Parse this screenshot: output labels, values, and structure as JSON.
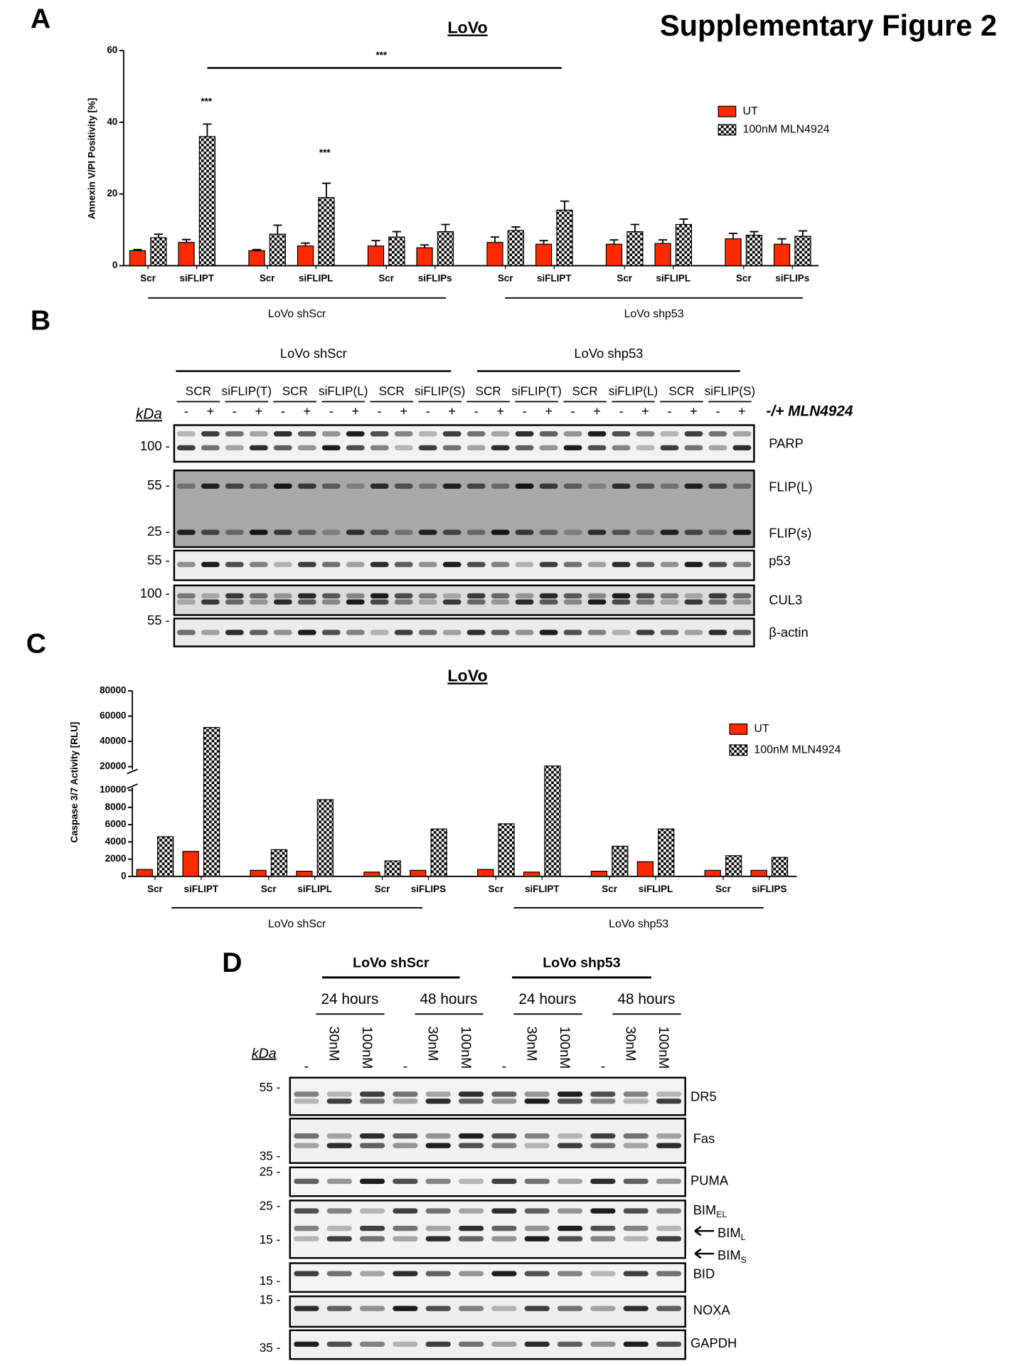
{
  "figure_title": "Supplementary Figure 2",
  "panel_labels": [
    "A",
    "B",
    "C",
    "D"
  ],
  "chart_data": [
    {
      "type": "bar",
      "title": "LoVo",
      "y_label": "Annexin V/PI Positivity [%]",
      "categories": [
        "Scr",
        "siFLIPT",
        "Scr",
        "siFLIPL",
        "Scr",
        "siFLIPs",
        "Scr",
        "siFLIPT",
        "Scr",
        "siFLIPL",
        "Scr",
        "siFLIPs"
      ],
      "groups": [
        "LoVo shScr",
        "LoVo shp53"
      ],
      "series": [
        {
          "name": "UT",
          "color": "#ff2a00",
          "values": [
            4.2,
            6.5,
            4.2,
            5.5,
            5.5,
            5,
            6.5,
            6,
            6,
            6.2,
            7.5,
            6
          ],
          "errors": [
            0.3,
            0.8,
            0.3,
            0.8,
            1.5,
            0.8,
            1.5,
            1,
            1.2,
            1,
            1.5,
            1.5
          ]
        },
        {
          "name": "100nM MLN4924",
          "color": "#000000",
          "pattern": "checker",
          "values": [
            7.8,
            36,
            8.8,
            19,
            8,
            9.5,
            9.8,
            15.5,
            9.5,
            11.5,
            8.5,
            8.2
          ],
          "errors": [
            1,
            3.5,
            2.5,
            4,
            1.5,
            2,
            1,
            2.5,
            2,
            1.5,
            1,
            1.5
          ]
        }
      ],
      "ylim": [
        0,
        60
      ],
      "yticks": [
        0,
        20,
        40,
        60
      ],
      "annotations": [
        "***",
        "***",
        "***"
      ]
    },
    {
      "type": "bar",
      "title": "LoVo",
      "y_label": "Caspase 3/7 Activity [RLU]",
      "categories": [
        "Scr",
        "siFLIPT",
        "Scr",
        "siFLIPL",
        "Scr",
        "siFLIPS",
        "Scr",
        "siFLIPT",
        "Scr",
        "siFLIPL",
        "Scr",
        "siFLIPS"
      ],
      "groups": [
        "LoVo shScr",
        "LoVo shp53"
      ],
      "series": [
        {
          "name": "UT",
          "color": "#ff2a00",
          "values": [
            800,
            2900,
            700,
            600,
            500,
            700,
            800,
            500,
            600,
            1700,
            700,
            700
          ]
        },
        {
          "name": "100nM MLN4924",
          "color": "#000000",
          "pattern": "checker",
          "values": [
            4600,
            51000,
            3100,
            8900,
            1800,
            5500,
            6100,
            20500,
            3500,
            5500,
            2400,
            2200
          ]
        }
      ],
      "ylim": [
        0,
        80000
      ],
      "y_break": [
        10000,
        20000
      ],
      "yticks": [
        0,
        2000,
        4000,
        6000,
        8000,
        10000,
        20000,
        40000,
        60000,
        80000
      ]
    }
  ],
  "blot_b": {
    "groups": [
      "LoVo shScr",
      "LoVo shp53"
    ],
    "lane_groups": [
      "SCR",
      "siFLIP(T)",
      "SCR",
      "siFLIP(L)",
      "SCR",
      "siFLIP(S)",
      "SCR",
      "siFLIP(T)",
      "SCR",
      "siFLIP(L)",
      "SCR",
      "siFLIP(S)"
    ],
    "lane_signs": [
      "-",
      "+",
      "-",
      "+",
      "-",
      "+",
      "-",
      "+",
      "-",
      "+",
      "-",
      "+",
      "-",
      "+",
      "-",
      "+",
      "-",
      "+",
      "-",
      "+",
      "-",
      "+",
      "-",
      "+"
    ],
    "treatment_label": "-/+ MLN4924",
    "kda_label": "kDa",
    "rows": [
      {
        "labels": [
          "PARP"
        ],
        "markers": [
          "100 -"
        ]
      },
      {
        "labels": [
          "FLIP(L)",
          "FLIP(s)"
        ],
        "markers": [
          "55 -",
          "25 -"
        ]
      },
      {
        "labels": [
          "p53"
        ],
        "markers": [
          "55 -"
        ]
      },
      {
        "labels": [
          "CUL3"
        ],
        "markers": [
          "100 -"
        ]
      },
      {
        "labels": [
          "β-actin"
        ],
        "markers": [
          "55 -"
        ]
      }
    ]
  },
  "blot_d": {
    "groups": [
      "LoVo shScr",
      "LoVo shp53"
    ],
    "times": [
      "24 hours",
      "48 hours",
      "24 hours",
      "48 hours"
    ],
    "lanes": [
      "-",
      "30nM",
      "100nM",
      "-",
      "30nM",
      "100nM",
      "-",
      "30nM",
      "100nM",
      "-",
      "30nM",
      "100nM"
    ],
    "kda_label": "kDa",
    "rows": [
      {
        "labels": [
          "DR5"
        ],
        "markers": [
          "55 -"
        ]
      },
      {
        "labels": [
          "Fas"
        ],
        "markers": [
          "35 -"
        ]
      },
      {
        "labels": [
          "PUMA"
        ],
        "markers": [
          "25 -"
        ]
      },
      {
        "labels": [
          {
            "text": "BIM",
            "sub": "EL"
          },
          {
            "text": "BIM",
            "sub": "L"
          },
          {
            "text": "BIM",
            "sub": "S"
          }
        ],
        "markers": [
          "25 -",
          "15 -"
        ]
      },
      {
        "labels": [
          "BID"
        ],
        "markers": [
          "15 -"
        ]
      },
      {
        "labels": [
          "NOXA"
        ],
        "markers": [
          "15 -"
        ]
      },
      {
        "labels": [
          "GAPDH"
        ],
        "markers": [
          "35 -"
        ]
      }
    ]
  }
}
